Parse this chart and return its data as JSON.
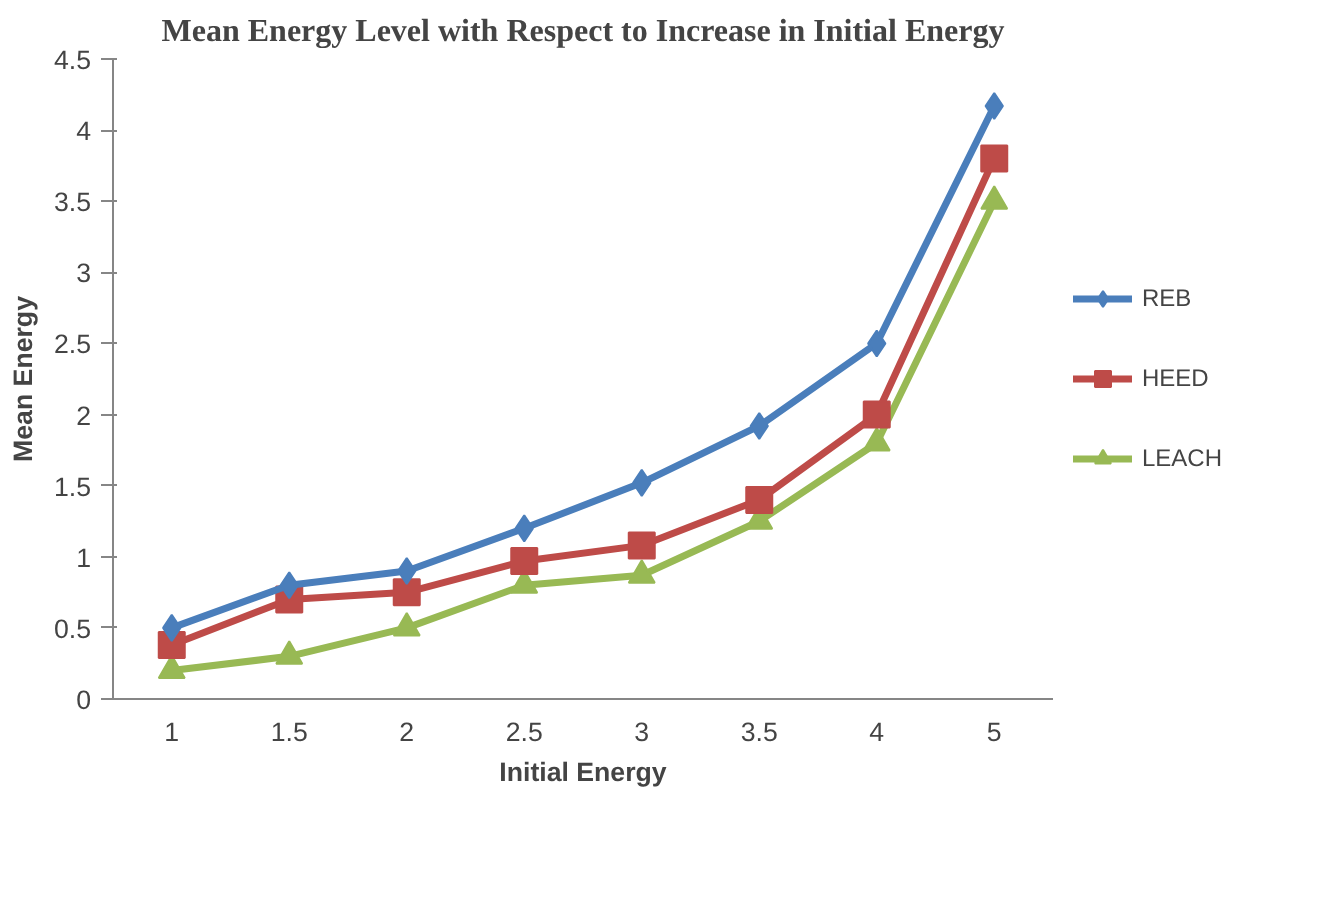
{
  "chart_data": {
    "type": "line",
    "title": "Mean Energy Level with Respect to Increase in Initial Energy",
    "xlabel": "Initial Energy",
    "ylabel": "Mean Energy",
    "categories": [
      "1",
      "1.5",
      "2",
      "2.5",
      "3",
      "3.5",
      "4",
      "5"
    ],
    "series": [
      {
        "name": "REB",
        "color": "#4a7ebb",
        "marker": "diamond",
        "values": [
          0.5,
          0.8,
          0.9,
          1.2,
          1.52,
          1.92,
          2.5,
          4.17
        ]
      },
      {
        "name": "HEED",
        "color": "#be4b48",
        "marker": "square",
        "values": [
          0.38,
          0.7,
          0.75,
          0.97,
          1.08,
          1.4,
          2.0,
          3.8
        ]
      },
      {
        "name": "LEACH",
        "color": "#98b954",
        "marker": "triangle",
        "values": [
          0.2,
          0.3,
          0.5,
          0.8,
          0.87,
          1.25,
          1.8,
          3.5
        ]
      }
    ],
    "ylim": [
      0,
      4.5
    ],
    "yticks": [
      0,
      0.5,
      1,
      1.5,
      2,
      2.5,
      3,
      3.5,
      4,
      4.5
    ],
    "grid": false,
    "legend": "right"
  }
}
